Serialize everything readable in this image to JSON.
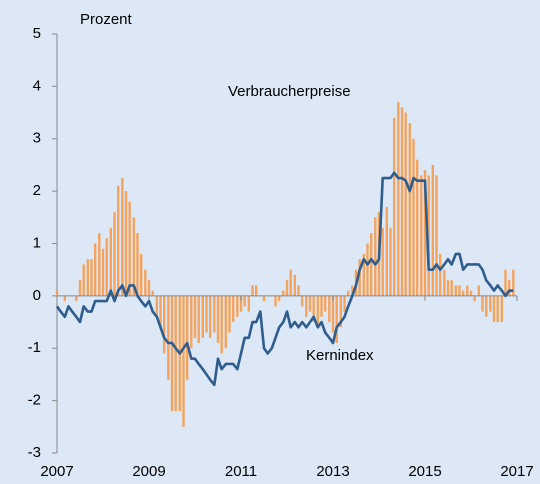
{
  "chart_data": {
    "type": "combo",
    "ylabel": "Prozent",
    "xlim": [
      2007,
      2017
    ],
    "xticks": [
      2007,
      2009,
      2011,
      2013,
      2015,
      2017
    ],
    "ylim": [
      -3,
      5
    ],
    "yticks": [
      -3,
      -2,
      -1,
      0,
      1,
      2,
      3,
      4,
      5
    ],
    "x": [
      2007,
      2007.08,
      2007.17,
      2007.25,
      2007.33,
      2007.42,
      2007.5,
      2007.58,
      2007.67,
      2007.75,
      2007.83,
      2007.92,
      2008,
      2008.08,
      2008.17,
      2008.25,
      2008.33,
      2008.42,
      2008.5,
      2008.58,
      2008.67,
      2008.75,
      2008.83,
      2008.92,
      2009,
      2009.08,
      2009.17,
      2009.25,
      2009.33,
      2009.42,
      2009.5,
      2009.58,
      2009.67,
      2009.75,
      2009.83,
      2009.92,
      2010,
      2010.08,
      2010.17,
      2010.25,
      2010.33,
      2010.42,
      2010.5,
      2010.58,
      2010.67,
      2010.75,
      2010.83,
      2010.92,
      2011,
      2011.08,
      2011.17,
      2011.25,
      2011.33,
      2011.42,
      2011.5,
      2011.58,
      2011.67,
      2011.75,
      2011.83,
      2011.92,
      2012,
      2012.08,
      2012.17,
      2012.25,
      2012.33,
      2012.42,
      2012.5,
      2012.58,
      2012.67,
      2012.75,
      2012.83,
      2012.92,
      2013,
      2013.08,
      2013.17,
      2013.25,
      2013.33,
      2013.42,
      2013.5,
      2013.58,
      2013.67,
      2013.75,
      2013.83,
      2013.92,
      2014,
      2014.08,
      2014.17,
      2014.25,
      2014.33,
      2014.42,
      2014.5,
      2014.58,
      2014.67,
      2014.75,
      2014.83,
      2014.92,
      2015,
      2015.08,
      2015.17,
      2015.25,
      2015.33,
      2015.42,
      2015.5,
      2015.58,
      2015.67,
      2015.75,
      2015.83,
      2015.92,
      2016,
      2016.08,
      2016.17,
      2016.25,
      2016.33,
      2016.42,
      2016.5,
      2016.58,
      2016.67,
      2016.75,
      2016.83,
      2016.92
    ],
    "series": [
      {
        "name": "Verbraucherpreise",
        "type": "bar",
        "color": "#f4a25c",
        "values": [
          0.1,
          0,
          -0.1,
          0,
          0,
          -0.1,
          0.3,
          0.6,
          0.7,
          0.7,
          1.0,
          1.2,
          0.9,
          1.1,
          1.3,
          1.6,
          2.1,
          2.25,
          2.0,
          1.8,
          1.5,
          1.2,
          0.8,
          0.5,
          0.3,
          0.1,
          -0.4,
          -0.6,
          -1.1,
          -1.6,
          -2.2,
          -2.2,
          -2.2,
          -2.5,
          -1.6,
          -1.0,
          -0.8,
          -0.9,
          -0.8,
          -0.7,
          -0.8,
          -0.7,
          -0.9,
          -1.1,
          -1.0,
          -0.7,
          -0.5,
          -0.4,
          -0.3,
          -0.2,
          -0.3,
          0.2,
          0.2,
          0,
          -0.1,
          0,
          0,
          -0.2,
          -0.1,
          0.1,
          0.3,
          0.5,
          0.4,
          0.2,
          -0.2,
          -0.4,
          -0.3,
          -0.5,
          -0.6,
          -0.4,
          -0.3,
          -0.5,
          -0.7,
          -0.9,
          -0.6,
          -0.3,
          0.1,
          0.2,
          0.5,
          0.7,
          0.8,
          1.0,
          1.2,
          1.5,
          1.6,
          1.3,
          1.7,
          1.3,
          3.4,
          3.7,
          3.6,
          3.5,
          3.3,
          3.0,
          2.6,
          2.3,
          2.4,
          2.3,
          2.5,
          2.3,
          0.8,
          0.5,
          0.3,
          0.3,
          0.2,
          0.2,
          0.1,
          0.2,
          0.1,
          -0.1,
          0.2,
          -0.3,
          -0.4,
          -0.3,
          -0.5,
          -0.5,
          -0.5,
          0.5,
          0.3,
          0.5
        ]
      },
      {
        "name": "Kernindex",
        "type": "line",
        "color": "#2f5d8e",
        "values": [
          -0.2,
          -0.3,
          -0.4,
          -0.2,
          -0.3,
          -0.4,
          -0.5,
          -0.2,
          -0.3,
          -0.3,
          -0.1,
          -0.1,
          -0.1,
          -0.1,
          0.1,
          -0.1,
          0.1,
          0.2,
          0.0,
          0.2,
          0.2,
          0.0,
          -0.1,
          -0.2,
          -0.1,
          -0.3,
          -0.4,
          -0.6,
          -0.8,
          -0.9,
          -0.9,
          -1.0,
          -1.1,
          -1.0,
          -0.9,
          -1.2,
          -1.2,
          -1.3,
          -1.4,
          -1.5,
          -1.6,
          -1.7,
          -1.2,
          -1.4,
          -1.3,
          -1.3,
          -1.3,
          -1.4,
          -1.1,
          -0.8,
          -0.8,
          -0.5,
          -0.5,
          -0.3,
          -1.0,
          -1.1,
          -1.0,
          -0.8,
          -0.6,
          -0.5,
          -0.3,
          -0.6,
          -0.5,
          -0.6,
          -0.5,
          -0.6,
          -0.5,
          -0.4,
          -0.6,
          -0.5,
          -0.7,
          -0.8,
          -0.9,
          -0.6,
          -0.5,
          -0.4,
          -0.2,
          0,
          0.2,
          0.5,
          0.7,
          0.6,
          0.7,
          0.6,
          0.7,
          2.25,
          2.25,
          2.25,
          2.35,
          2.25,
          2.25,
          2.2,
          2.0,
          2.25,
          2.2,
          2.2,
          2.2,
          0.5,
          0.5,
          0.6,
          0.5,
          0.6,
          0.7,
          0.6,
          0.8,
          0.8,
          0.5,
          0.6,
          0.6,
          0.6,
          0.6,
          0.5,
          0.3,
          0.2,
          0.1,
          0.2,
          0.1,
          0.0,
          0.1,
          0.1
        ]
      }
    ]
  }
}
